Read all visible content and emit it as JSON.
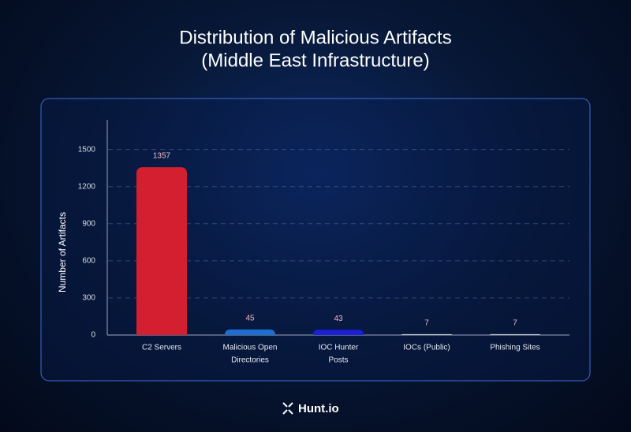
{
  "brand": "Hunt.io",
  "chart_data": {
    "type": "bar",
    "title": [
      "Distribution of Malicious Artifacts",
      "(Middle East Infrastructure)"
    ],
    "y_label": "Number of Artifacts",
    "categories": [
      [
        "C2 Servers"
      ],
      [
        "Malicious Open",
        "Directories"
      ],
      [
        "IOC Hunter",
        "Posts"
      ],
      [
        "IOCs (Public)"
      ],
      [
        "Phishing Sites"
      ]
    ],
    "values": [
      1357,
      45,
      43,
      7,
      7
    ],
    "colors": [
      "#d31f30",
      "#1f6fd2",
      "#1b1fd6",
      "#c9c9cc",
      "#c9c9cc"
    ],
    "ylim": [
      0,
      1740
    ],
    "yticks": [
      0,
      300,
      600,
      900,
      1200,
      1500
    ],
    "grid": true
  }
}
